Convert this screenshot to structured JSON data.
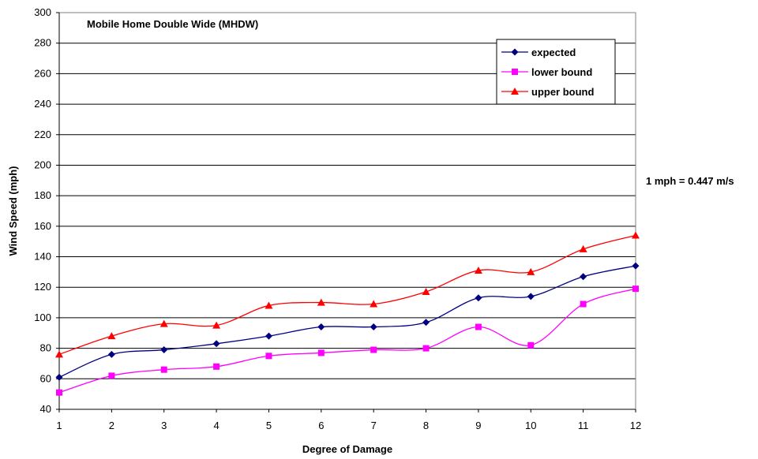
{
  "chart_data": {
    "type": "line",
    "title": "Mobile Home Double Wide (MHDW)",
    "xlabel": "Degree of Damage",
    "ylabel": "Wind Speed (mph)",
    "x": [
      1,
      2,
      3,
      4,
      5,
      6,
      7,
      8,
      9,
      10,
      11,
      12
    ],
    "xlim": [
      1,
      12
    ],
    "ylim": [
      40,
      300
    ],
    "yticks": [
      40,
      60,
      80,
      100,
      120,
      140,
      160,
      180,
      200,
      220,
      240,
      260,
      280,
      300
    ],
    "grid": "horizontal",
    "legend_position": "top-right",
    "annotation": "1 mph = 0.447 m/s",
    "series": [
      {
        "name": "expected",
        "color": "#000080",
        "marker": "diamond",
        "values": [
          61,
          76,
          79,
          83,
          88,
          94,
          94,
          97,
          113,
          114,
          127,
          134
        ]
      },
      {
        "name": "lower bound",
        "color": "#ff00ff",
        "marker": "square",
        "values": [
          51,
          62,
          66,
          68,
          75,
          77,
          79,
          80,
          94,
          82,
          109,
          119
        ]
      },
      {
        "name": "upper bound",
        "color": "#ff0000",
        "marker": "triangle",
        "values": [
          76,
          88,
          96,
          95,
          108,
          110,
          109,
          117,
          131,
          130,
          145,
          154
        ]
      }
    ]
  }
}
